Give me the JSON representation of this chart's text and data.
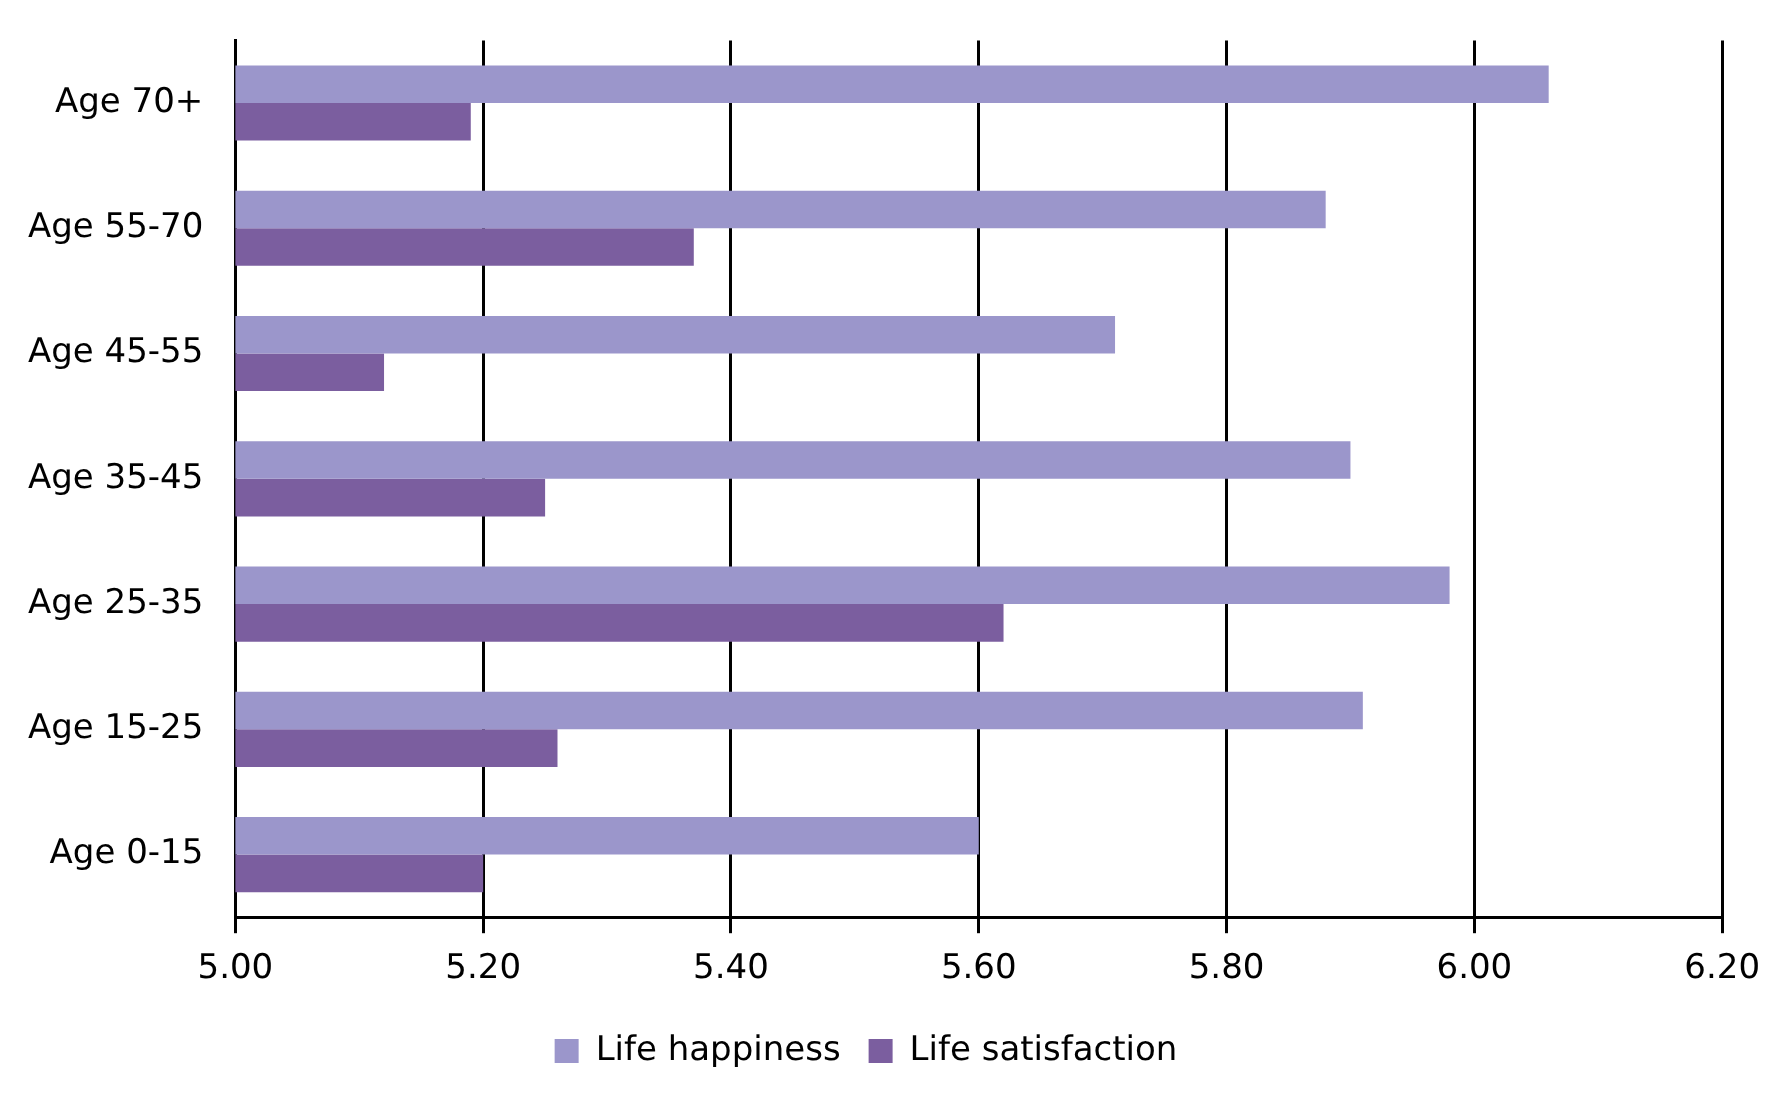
{
  "chart_data": {
    "type": "bar",
    "orientation": "horizontal",
    "categories": [
      "Age 70+",
      "Age 55-70",
      "Age 45-55",
      "Age 35-45",
      "Age 25-35",
      "Age 15-25",
      "Age 0-15"
    ],
    "series": [
      {
        "name": "Life happiness",
        "color": "#9b96cb",
        "values": [
          6.06,
          5.88,
          5.71,
          5.9,
          5.98,
          5.91,
          5.6
        ]
      },
      {
        "name": "Life satisfaction",
        "color": "#7b5e9f",
        "values": [
          5.19,
          5.37,
          5.12,
          5.25,
          5.62,
          5.26,
          5.2
        ]
      }
    ],
    "xlim": [
      5,
      6.2
    ],
    "xticks": [
      {
        "value": 5,
        "label": "5.00"
      },
      {
        "value": 5.2,
        "label": "5.20"
      },
      {
        "value": 5.4,
        "label": "5.40"
      },
      {
        "value": 5.6,
        "label": "5.60"
      },
      {
        "value": 5.8,
        "label": "5.80"
      },
      {
        "value": 6,
        "label": "6.00"
      },
      {
        "value": 6.2,
        "label": "6.20"
      }
    ],
    "grid": "x",
    "legend": "bottom"
  }
}
